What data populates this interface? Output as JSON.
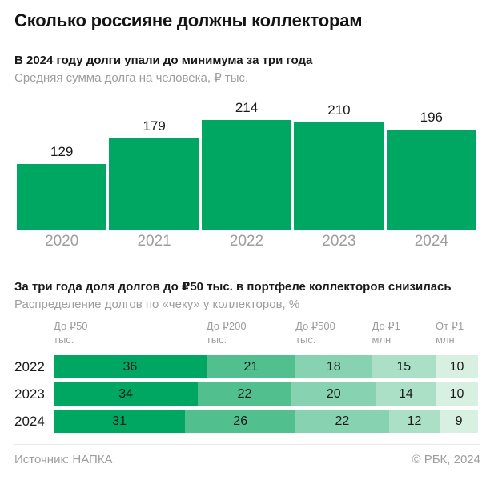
{
  "page": {
    "title": "Сколько россияне должны коллекторам"
  },
  "chart_data": [
    {
      "type": "bar",
      "title": "В 2024 году долги упали до минимума за три года",
      "subtitle": "Средняя сумма долга на человека, ₽ тыс.",
      "categories": [
        "2020",
        "2021",
        "2022",
        "2023",
        "2024"
      ],
      "values": [
        129,
        179,
        214,
        210,
        196
      ],
      "bar_color": "#00a763",
      "ylim": [
        0,
        214
      ],
      "grid": "off",
      "legend": "none"
    },
    {
      "type": "table",
      "title": "За три года доля долгов до ₽50 тыс. в портфеле коллекторов снизилась",
      "subtitle": "Распределение долгов по «чеку» у коллекторов, %",
      "columns": [
        {
          "line1": "До ₽50",
          "line2": "тыс."
        },
        {
          "line1": "До ₽200",
          "line2": "тыс."
        },
        {
          "line1": "До ₽500",
          "line2": "тыс."
        },
        {
          "line1": "До ₽1",
          "line2": "млн"
        },
        {
          "line1": "От ₽1",
          "line2": "млн"
        }
      ],
      "rows": [
        {
          "label": "2022",
          "values": [
            36,
            21,
            18,
            15,
            10
          ]
        },
        {
          "label": "2023",
          "values": [
            34,
            22,
            20,
            14,
            10
          ]
        },
        {
          "label": "2024",
          "values": [
            31,
            26,
            22,
            12,
            9
          ]
        }
      ],
      "colors": [
        "#00a763",
        "#52c08e",
        "#87d2b0",
        "#abe0c7",
        "#d7f0e2"
      ],
      "unit": "%"
    }
  ],
  "footer": {
    "source": "Источник: НАПКА",
    "copyright": "© РБК, 2024"
  }
}
